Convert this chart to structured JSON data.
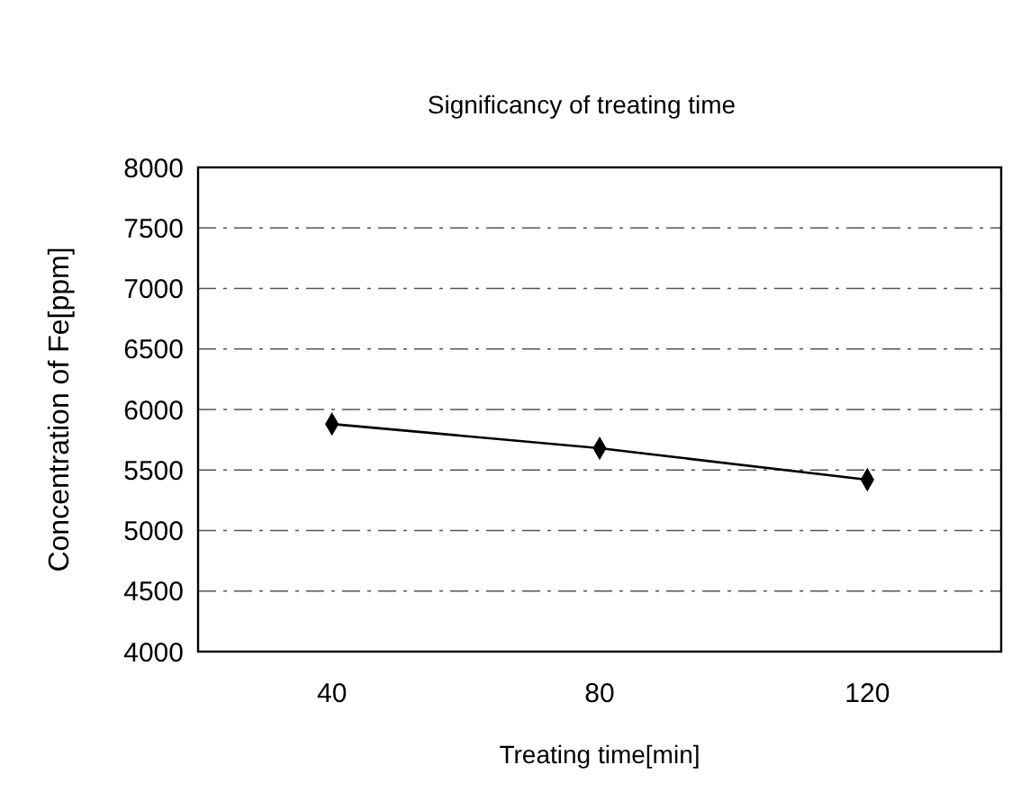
{
  "chart_data": {
    "type": "line",
    "title": "Significancy of treating time",
    "xlabel": "Treating time[min]",
    "ylabel": "Concentration of Fe[ppm]",
    "categories": [
      "40",
      "80",
      "120"
    ],
    "series": [
      {
        "color": "#000000",
        "values": [
          5880,
          5680,
          5420
        ]
      }
    ],
    "ylim": [
      4000,
      8000
    ],
    "yticks": [
      4000,
      4500,
      5000,
      5500,
      6000,
      6500,
      7000,
      7500,
      8000
    ],
    "grid": "y",
    "marker": "diamond",
    "line_style": "solid"
  }
}
